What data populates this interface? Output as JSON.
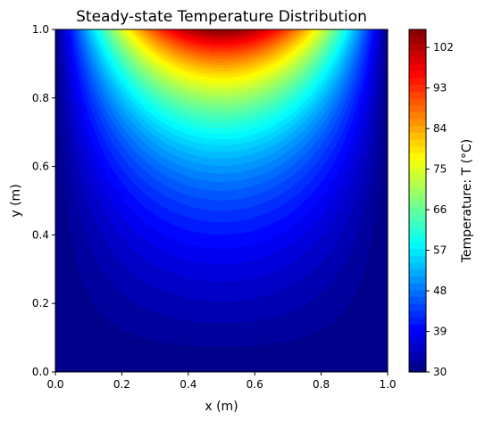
{
  "chart_data": {
    "type": "heatmap",
    "subtype": "filled-contour",
    "title": "Steady-state Temperature Distribution",
    "xlabel": "x (m)",
    "ylabel": "y (m)",
    "xlim": [
      0.0,
      1.0
    ],
    "ylim": [
      0.0,
      1.0
    ],
    "x_ticks": [
      "0.0",
      "0.2",
      "0.4",
      "0.6",
      "0.8",
      "1.0"
    ],
    "y_ticks": [
      "0.0",
      "0.2",
      "0.4",
      "0.6",
      "0.8",
      "1.0"
    ],
    "grid": false,
    "colormap": "jet",
    "colorbar": {
      "label": "Temperature: T (°C)",
      "range": [
        30,
        106
      ],
      "ticks": [
        "30",
        "39",
        "48",
        "57",
        "66",
        "75",
        "84",
        "93",
        "102"
      ],
      "tick_values": [
        30,
        39,
        48,
        57,
        66,
        75,
        84,
        93,
        102
      ]
    },
    "boundary_conditions": {
      "left": 30,
      "right": 30,
      "bottom": 30,
      "top_center_max": 106
    },
    "field": "T(x,y) = 30 + 76 * sin(pi*x) * sinh(pi*y)/sinh(pi)"
  }
}
